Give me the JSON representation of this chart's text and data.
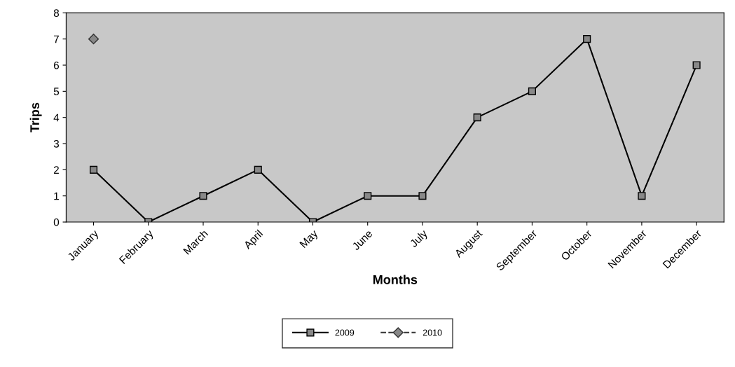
{
  "chart_data": {
    "type": "line",
    "xlabel": "Months",
    "ylabel": "Trips",
    "categories": [
      "January",
      "February",
      "March",
      "April",
      "May",
      "June",
      "July",
      "August",
      "September",
      "October",
      "November",
      "December"
    ],
    "series": [
      {
        "name": "2009",
        "color": "#000000",
        "marker": "square",
        "line_style": "solid",
        "values": [
          2,
          0,
          1,
          2,
          0,
          1,
          1,
          4,
          5,
          7,
          1,
          6
        ]
      },
      {
        "name": "2010",
        "color": "#333333",
        "marker": "diamond",
        "line_style": "dashed",
        "values": [
          7,
          null,
          null,
          null,
          null,
          null,
          null,
          null,
          null,
          null,
          null,
          null
        ]
      }
    ],
    "ylim": [
      0,
      8
    ],
    "yticks": [
      0,
      1,
      2,
      3,
      4,
      5,
      6,
      7,
      8
    ],
    "grid": false,
    "legend": "bottom"
  }
}
